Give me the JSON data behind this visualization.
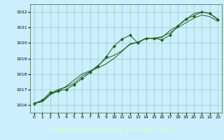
{
  "title": "Graphe pression niveau de la mer (hPa)",
  "bg_color": "#cceeff",
  "plot_bg_color": "#cceeff",
  "grid_color": "#99ccbb",
  "line_color": "#1a5c1a",
  "title_bg_color": "#336633",
  "title_text_color": "#ccffcc",
  "xlim": [
    -0.5,
    23.5
  ],
  "ylim": [
    1015.5,
    1022.5
  ],
  "yticks": [
    1016,
    1017,
    1018,
    1019,
    1020,
    1021,
    1022
  ],
  "xticks": [
    0,
    1,
    2,
    3,
    4,
    5,
    6,
    7,
    8,
    9,
    10,
    11,
    12,
    13,
    14,
    15,
    16,
    17,
    18,
    19,
    20,
    21,
    22,
    23
  ],
  "series": [
    {
      "x": [
        0,
        1,
        2,
        3,
        4,
        5,
        6,
        7,
        8,
        9,
        10,
        11,
        12,
        13,
        14,
        15,
        16,
        17,
        18,
        19,
        20,
        21,
        22,
        23
      ],
      "y": [
        1016.1,
        1016.3,
        1016.8,
        1016.9,
        1017.0,
        1017.3,
        1017.7,
        1018.1,
        1018.5,
        1019.1,
        1019.8,
        1020.25,
        1020.5,
        1020.0,
        1020.3,
        1020.3,
        1020.2,
        1020.5,
        1021.1,
        1021.55,
        1021.75,
        1022.0,
        1021.9,
        1021.5
      ],
      "marker": true
    },
    {
      "x": [
        0,
        1,
        2,
        3,
        4,
        5,
        6,
        7,
        8,
        9,
        10,
        11,
        12,
        13,
        14,
        15,
        16,
        17,
        18,
        19,
        20,
        21,
        22,
        23
      ],
      "y": [
        1016.1,
        1016.25,
        1016.7,
        1017.0,
        1017.15,
        1017.4,
        1017.85,
        1018.15,
        1018.55,
        1019.0,
        1019.2,
        1019.5,
        1019.9,
        1020.05,
        1020.3,
        1020.3,
        1020.35,
        1020.8,
        1021.1,
        1021.5,
        1021.9,
        1022.0,
        1021.9,
        1021.55
      ],
      "marker": false
    },
    {
      "x": [
        0,
        1,
        2,
        3,
        4,
        5,
        6,
        7,
        8,
        9,
        10,
        11,
        12,
        13,
        14,
        15,
        16,
        17,
        18,
        19,
        20,
        21,
        22,
        23
      ],
      "y": [
        1016.1,
        1016.2,
        1016.65,
        1016.9,
        1017.2,
        1017.6,
        1018.0,
        1018.2,
        1018.4,
        1018.65,
        1019.0,
        1019.45,
        1019.95,
        1020.05,
        1020.3,
        1020.3,
        1020.4,
        1020.65,
        1021.0,
        1021.3,
        1021.6,
        1021.8,
        1021.7,
        1021.4
      ],
      "marker": false
    }
  ]
}
